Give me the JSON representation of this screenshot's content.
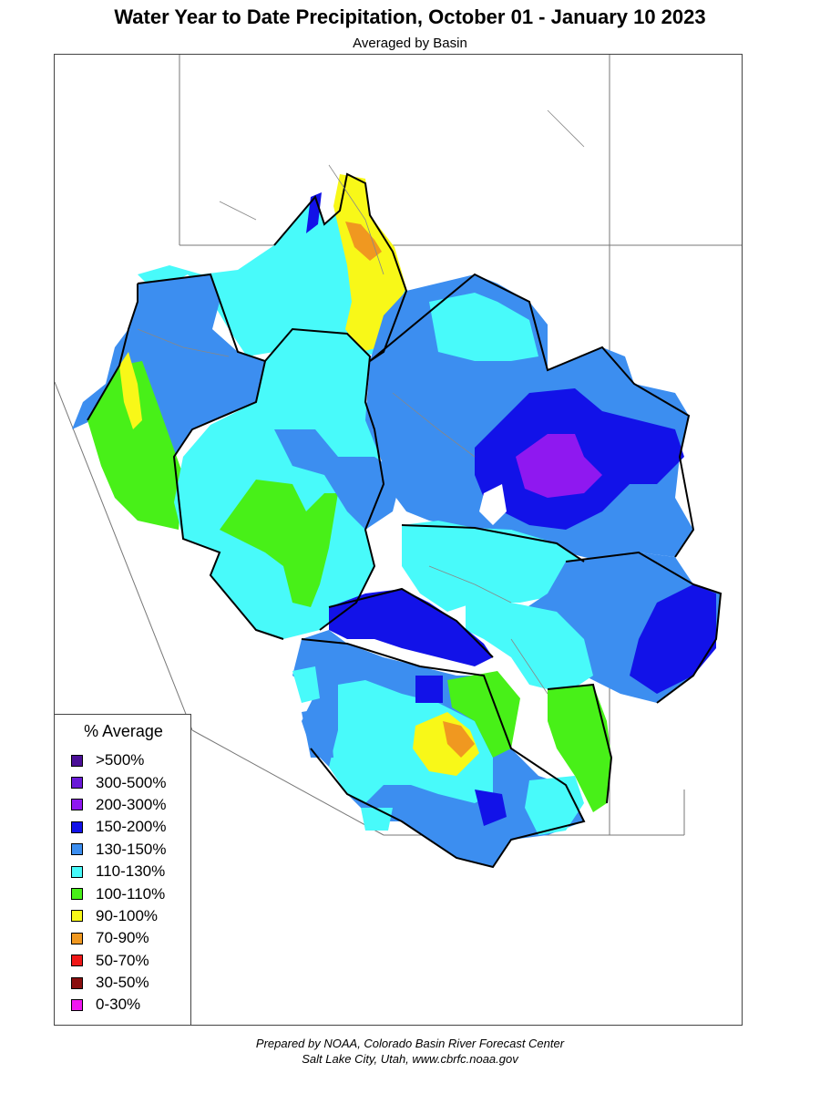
{
  "title": "Water Year to Date Precipitation, October 01  - January 10 2023",
  "subtitle": "Averaged by Basin",
  "legend": {
    "title": "% Average",
    "items": [
      {
        "label": ">500%",
        "color": "#4b0f98"
      },
      {
        "label": "300-500%",
        "color": "#6a19d8"
      },
      {
        "label": "200-300%",
        "color": "#8f18f0"
      },
      {
        "label": "150-200%",
        "color": "#1212e8"
      },
      {
        "label": "130-150%",
        "color": "#3c8ef0"
      },
      {
        "label": "110-130%",
        "color": "#48fafa"
      },
      {
        "label": "100-110%",
        "color": "#48f018"
      },
      {
        "label": "90-100%",
        "color": "#f8f818"
      },
      {
        "label": "70-90%",
        "color": "#f09820"
      },
      {
        "label": "50-70%",
        "color": "#f01818"
      },
      {
        "label": "30-50%",
        "color": "#8a0f0f"
      },
      {
        "label": "0-30%",
        "color": "#f018f0"
      }
    ]
  },
  "footer": {
    "line1": "Prepared by NOAA, Colorado Basin River Forecast Center",
    "line2": "Salt Lake City, Utah, www.cbrfc.noaa.gov"
  }
}
